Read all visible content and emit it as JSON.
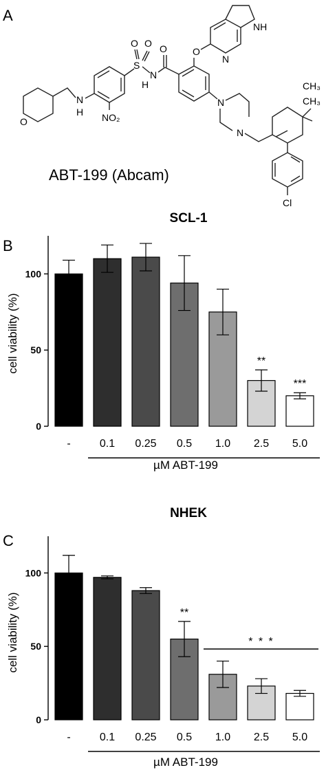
{
  "panels": {
    "a": "A",
    "b": "B",
    "c": "C"
  },
  "structure": {
    "compound_label": "ABT-199 (Abcam)",
    "atoms": {
      "O1": "O",
      "O2": "O",
      "O3": "O",
      "O4": "O",
      "O5": "O",
      "S": "S",
      "N_amide": "N",
      "H_amide": "H",
      "N_amine": "N",
      "H_amine": "H",
      "NO2": "NO₂",
      "N_pip1": "N",
      "N_pip2": "N",
      "NH_pyrrole": "NH",
      "N_pyridine": "N",
      "CH3_a": "CH₃",
      "CH3_b": "CH₃",
      "Cl": "Cl"
    }
  },
  "chart_data": [
    {
      "type": "bar",
      "title": "SCL-1",
      "ylabel": "cell viability (%)",
      "xlabel": "µM ABT-199",
      "categories": [
        "-",
        "0.1",
        "0.25",
        "0.5",
        "1.0",
        "2.5",
        "5.0"
      ],
      "values": [
        100,
        110,
        111,
        94,
        75,
        30,
        20
      ],
      "errors": [
        9,
        9,
        9,
        18,
        15,
        7,
        2
      ],
      "colors": [
        "#000000",
        "#2e2e2e",
        "#4a4a4a",
        "#6e6e6e",
        "#9a9a9a",
        "#d4d4d4",
        "#ffffff"
      ],
      "significance": [
        "",
        "",
        "",
        "",
        "",
        "**",
        "***"
      ],
      "ylim": [
        0,
        125
      ],
      "yticks": [
        "0",
        "50",
        "100"
      ],
      "bracket": {
        "from": 1,
        "to": 6
      }
    },
    {
      "type": "bar",
      "title": "NHEK",
      "ylabel": "cell viability (%)",
      "xlabel": "µM ABT-199",
      "categories": [
        "-",
        "0.1",
        "0.25",
        "0.5",
        "1.0",
        "2.5",
        "5.0"
      ],
      "values": [
        100,
        97,
        88,
        55,
        31,
        23,
        18
      ],
      "errors": [
        12,
        1,
        2,
        12,
        9,
        5,
        2
      ],
      "colors": [
        "#000000",
        "#2e2e2e",
        "#4a4a4a",
        "#6e6e6e",
        "#9a9a9a",
        "#d4d4d4",
        "#ffffff"
      ],
      "significance": [
        "",
        "",
        "",
        "**",
        "",
        "",
        ""
      ],
      "ylim": [
        0,
        125
      ],
      "yticks": [
        "0",
        "50",
        "100"
      ],
      "group_significance": {
        "from": 4,
        "to": 6,
        "label": "* * *"
      },
      "bracket": {
        "from": 1,
        "to": 6
      }
    }
  ]
}
